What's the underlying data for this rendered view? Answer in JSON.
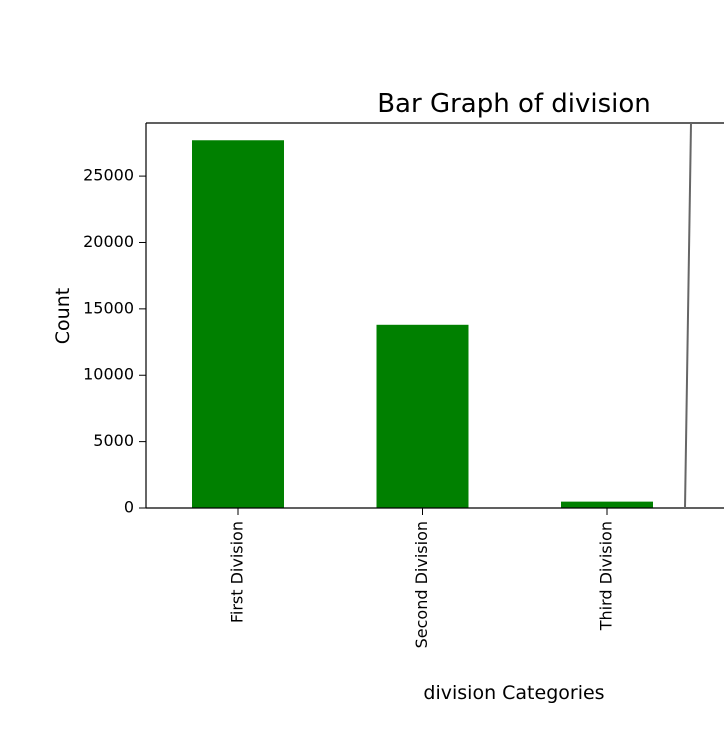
{
  "chart_data": {
    "type": "bar",
    "title": "Bar Graph of division",
    "xlabel": "division Categories",
    "ylabel": "Count",
    "categories": [
      "First Division",
      "Second Division",
      "Third Division"
    ],
    "values": [
      27700,
      13800,
      480
    ],
    "ylim": [
      0,
      29000
    ],
    "yticks": [
      0,
      5000,
      10000,
      15000,
      20000,
      25000
    ],
    "ytick_labels": [
      "0",
      "5000",
      "10000",
      "15000",
      "20000",
      "25000"
    ],
    "bar_color": "#008000",
    "grid": false,
    "legend": "none"
  }
}
